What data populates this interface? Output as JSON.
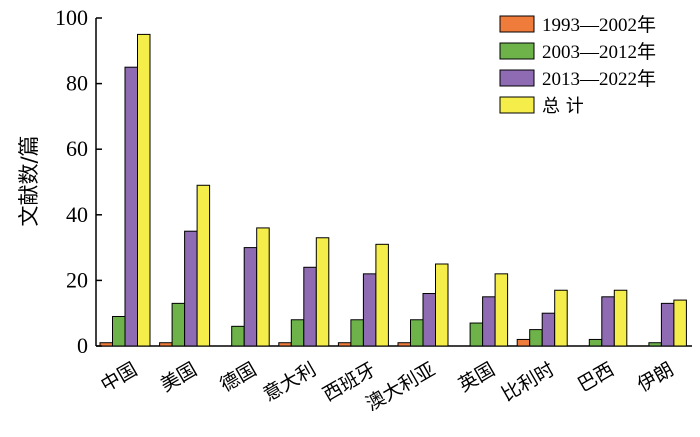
{
  "chart_data": {
    "type": "bar",
    "ylabel": "文献数/篇",
    "xlabel": "",
    "ylim": [
      0,
      100
    ],
    "yticks": [
      0,
      20,
      40,
      60,
      80,
      100
    ],
    "grid": false,
    "legend_position": "top-right",
    "categories": [
      "中国",
      "美国",
      "德国",
      "意大利",
      "西班牙",
      "澳大利亚",
      "英国",
      "比利时",
      "巴西",
      "伊朗"
    ],
    "series": [
      {
        "name": "1993—2002年",
        "color": "#f07c3c",
        "values": [
          1,
          1,
          0,
          1,
          1,
          1,
          0,
          2,
          0,
          0
        ]
      },
      {
        "name": "2003—2012年",
        "color": "#6db34a",
        "values": [
          9,
          13,
          6,
          8,
          8,
          8,
          7,
          5,
          2,
          1
        ]
      },
      {
        "name": "2013—2022年",
        "color": "#8e6bb2",
        "values": [
          85,
          35,
          30,
          24,
          22,
          16,
          15,
          10,
          15,
          13
        ]
      },
      {
        "name": "总 计",
        "color": "#f5ee4a",
        "values": [
          95,
          49,
          36,
          33,
          31,
          25,
          22,
          17,
          17,
          14
        ]
      }
    ]
  }
}
